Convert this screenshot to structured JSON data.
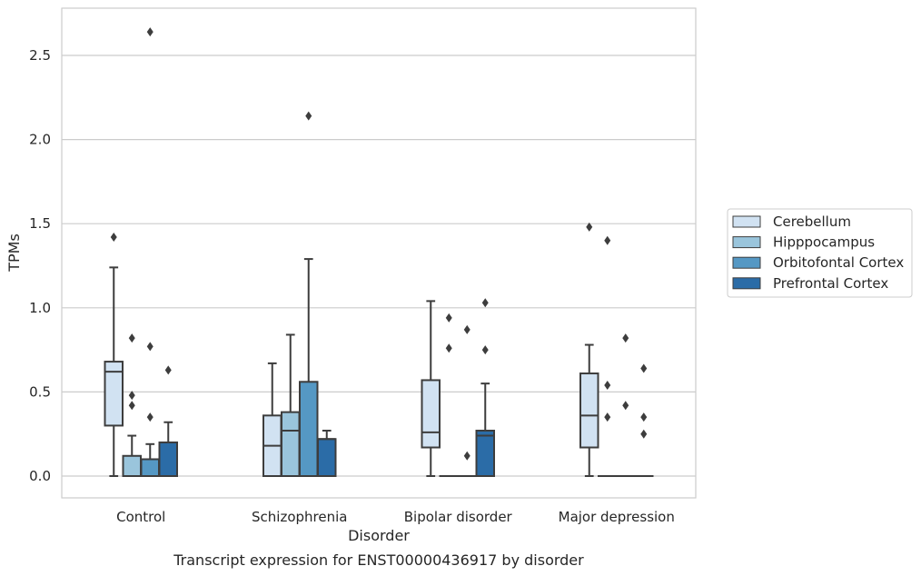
{
  "chart_data": {
    "type": "box",
    "xlabel": "Disorder",
    "ylabel": "TPMs",
    "caption": "Transcript expression for ENST00000436917 by disorder",
    "ylim": [
      -0.13,
      2.78
    ],
    "yticks": [
      "0.0",
      "0.5",
      "1.0",
      "1.5",
      "2.0",
      "2.5"
    ],
    "ytick_values": [
      0,
      0.5,
      1.0,
      1.5,
      2.0,
      2.5
    ],
    "grid": "horizontal",
    "legend_placement": "right",
    "categories": [
      "Control",
      "Schizophrenia",
      "Bipolar disorder",
      "Major depression"
    ],
    "series": [
      {
        "name": "Cerebellum",
        "color": "#d1e2f2",
        "boxes": [
          {
            "min": 0,
            "q1": 0.3,
            "median": 0.62,
            "q3": 0.68,
            "max": 1.24,
            "outliers": [
              1.42
            ]
          },
          {
            "min": 0,
            "q1": 0,
            "median": 0.18,
            "q3": 0.36,
            "max": 0.67,
            "outliers": []
          },
          {
            "min": 0,
            "q1": 0.17,
            "median": 0.26,
            "q3": 0.57,
            "max": 1.04,
            "outliers": []
          },
          {
            "min": 0,
            "q1": 0.17,
            "median": 0.36,
            "q3": 0.61,
            "max": 0.78,
            "outliers": [
              1.48
            ]
          }
        ]
      },
      {
        "name": "Hipppocampus",
        "color": "#9ac5dc",
        "boxes": [
          {
            "min": 0,
            "q1": 0,
            "median": 0,
            "q3": 0.12,
            "max": 0.24,
            "outliers": [
              0.82,
              0.48,
              0.42
            ]
          },
          {
            "min": 0,
            "q1": 0,
            "median": 0.27,
            "q3": 0.38,
            "max": 0.84,
            "outliers": []
          },
          {
            "min": 0,
            "q1": 0,
            "median": 0,
            "q3": 0,
            "max": 0,
            "outliers": [
              0.94,
              0.76
            ]
          },
          {
            "min": 0,
            "q1": 0,
            "median": 0,
            "q3": 0,
            "max": 0,
            "outliers": [
              1.4,
              0.54,
              0.35
            ]
          }
        ]
      },
      {
        "name": "Orbitofontal Cortex",
        "color": "#5598c4",
        "boxes": [
          {
            "min": 0,
            "q1": 0,
            "median": 0,
            "q3": 0.1,
            "max": 0.19,
            "outliers": [
              2.64,
              0.77,
              0.35
            ]
          },
          {
            "min": 0,
            "q1": 0,
            "median": 0,
            "q3": 0.56,
            "max": 1.29,
            "outliers": [
              2.14
            ]
          },
          {
            "min": 0,
            "q1": 0,
            "median": 0,
            "q3": 0,
            "max": 0,
            "outliers": [
              0.87,
              0.12
            ]
          },
          {
            "min": 0,
            "q1": 0,
            "median": 0,
            "q3": 0,
            "max": 0,
            "outliers": [
              0.82,
              0.42
            ]
          }
        ]
      },
      {
        "name": "Prefrontal Cortex",
        "color": "#2b6ca7",
        "boxes": [
          {
            "min": 0,
            "q1": 0,
            "median": 0,
            "q3": 0.2,
            "max": 0.32,
            "outliers": [
              0.63
            ]
          },
          {
            "min": 0,
            "q1": 0,
            "median": 0.22,
            "q3": 0.22,
            "max": 0.27,
            "outliers": []
          },
          {
            "min": 0,
            "q1": 0,
            "median": 0.24,
            "q3": 0.27,
            "max": 0.55,
            "outliers": [
              1.03,
              0.75
            ]
          },
          {
            "min": 0,
            "q1": 0,
            "median": 0,
            "q3": 0,
            "max": 0,
            "outliers": [
              0.64,
              0.35,
              0.25
            ]
          }
        ]
      }
    ]
  }
}
